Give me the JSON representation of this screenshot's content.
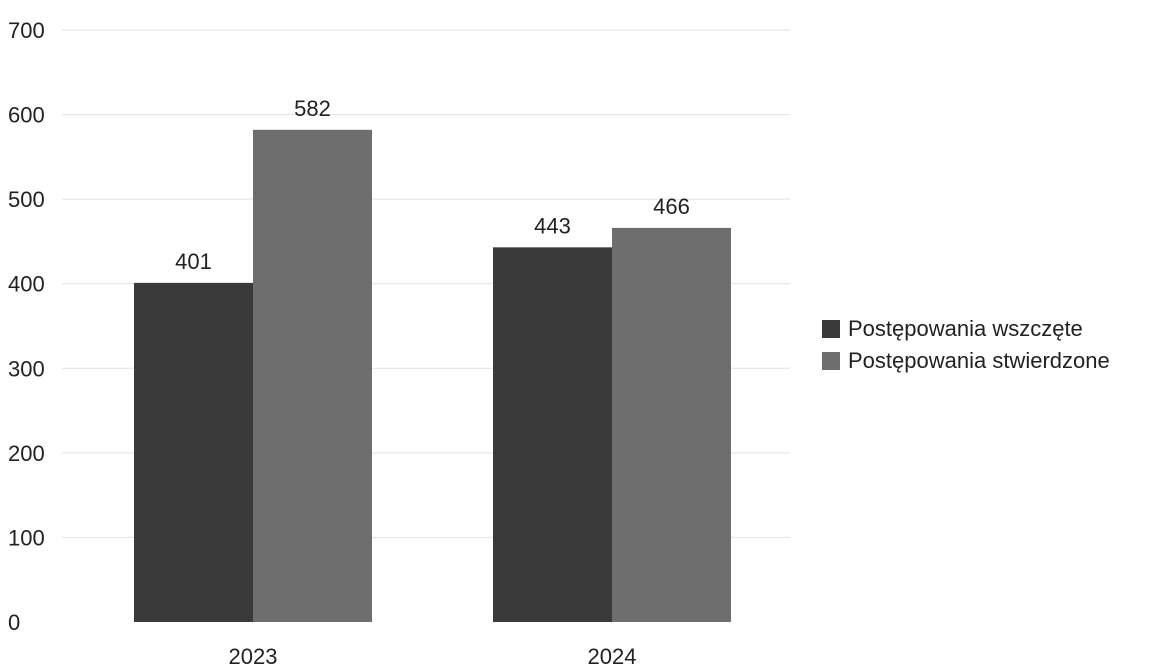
{
  "chart_data": {
    "type": "bar",
    "title": "",
    "xlabel": "",
    "ylabel": "",
    "categories": [
      "2023",
      "2024"
    ],
    "series": [
      {
        "name": "Postępowania wszczęte",
        "values": [
          401,
          443
        ],
        "color": "#3a3a3a"
      },
      {
        "name": "Postępowania stwierdzone",
        "values": [
          582,
          466
        ],
        "color": "#6e6e6e"
      }
    ],
    "ylim": [
      0,
      700
    ],
    "yticks": [
      "0",
      "100",
      "200",
      "300",
      "400",
      "500",
      "600",
      "700"
    ],
    "data_labels": true,
    "grid": true,
    "legend_position": "right"
  }
}
